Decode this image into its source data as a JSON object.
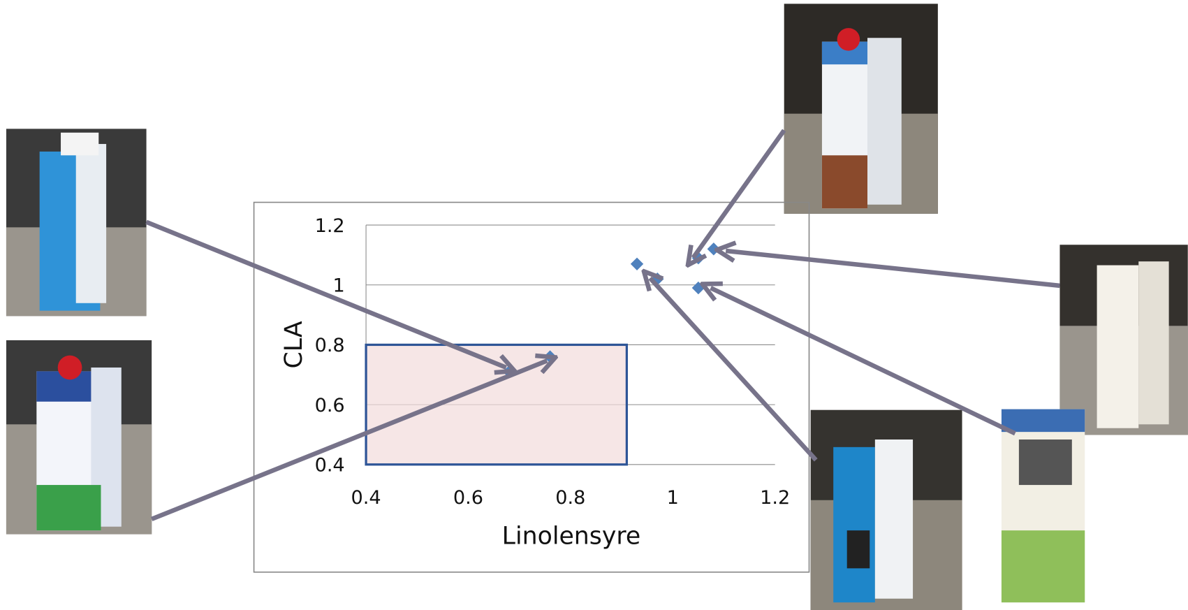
{
  "chart_data": {
    "type": "scatter",
    "xlabel": "Linolensyre",
    "ylabel": "CLA",
    "x": [
      0.68,
      0.76,
      0.93,
      0.97,
      1.05,
      1.08,
      1.05
    ],
    "values": [
      0.71,
      0.76,
      1.07,
      1.02,
      1.09,
      1.12,
      0.99
    ],
    "color": "#4f81bd",
    "xlim": [
      0.4,
      1.2
    ],
    "ylim": [
      0.4,
      1.2
    ],
    "xticks": [
      0.4,
      0.6,
      0.8,
      1,
      1.2
    ],
    "yticks": [
      0.4,
      0.6,
      0.8,
      1,
      1.2
    ],
    "grid": true,
    "highlight_region": {
      "x": [
        0.4,
        0.91
      ],
      "y": [
        0.4,
        0.8
      ]
    }
  }
}
